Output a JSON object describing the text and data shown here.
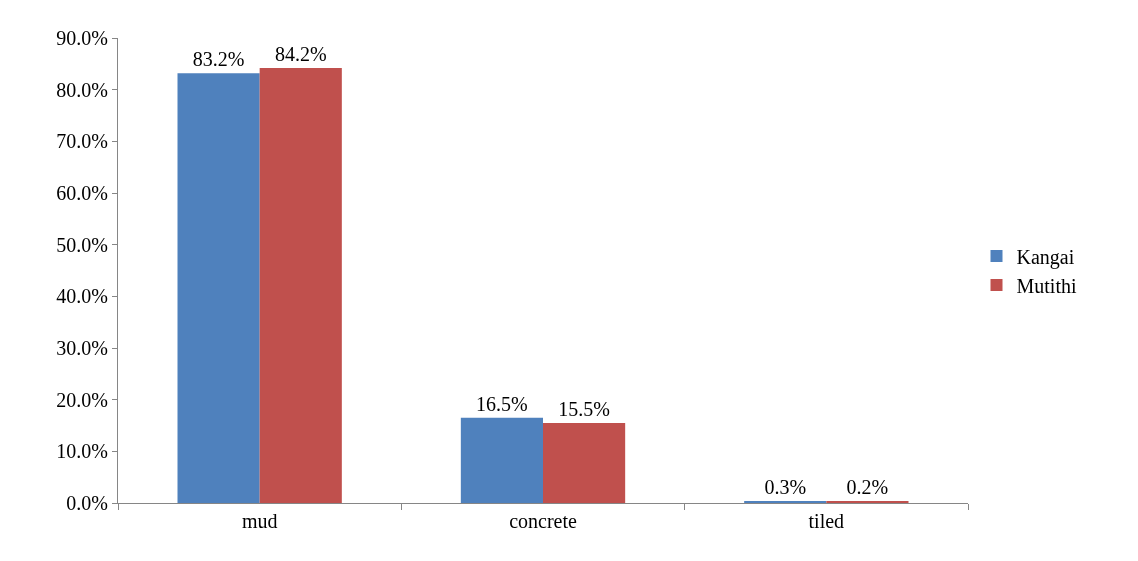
{
  "chart_data": {
    "type": "bar",
    "categories": [
      "mud",
      "concrete",
      "tiled"
    ],
    "series": [
      {
        "name": "Kangai",
        "color": "#4f81bd",
        "values": [
          83.2,
          16.5,
          0.3
        ],
        "value_labels": [
          "83.2%",
          "16.5%",
          "0.3%"
        ]
      },
      {
        "name": "Mutithi",
        "color": "#c0504d",
        "values": [
          84.2,
          15.5,
          0.2
        ],
        "value_labels": [
          "84.2%",
          "15.5%",
          "0.2%"
        ]
      }
    ],
    "ylim": [
      0,
      90
    ],
    "yticks": [
      {
        "value": 0,
        "label": "0.0%"
      },
      {
        "value": 10,
        "label": "10.0%"
      },
      {
        "value": 20,
        "label": "20.0%"
      },
      {
        "value": 30,
        "label": "30.0%"
      },
      {
        "value": 40,
        "label": "40.0%"
      },
      {
        "value": 50,
        "label": "50.0%"
      },
      {
        "value": 60,
        "label": "60.0%"
      },
      {
        "value": 70,
        "label": "70.0%"
      },
      {
        "value": 80,
        "label": "80.0%"
      },
      {
        "value": 90,
        "label": "90.0%"
      }
    ],
    "legend": "right"
  }
}
